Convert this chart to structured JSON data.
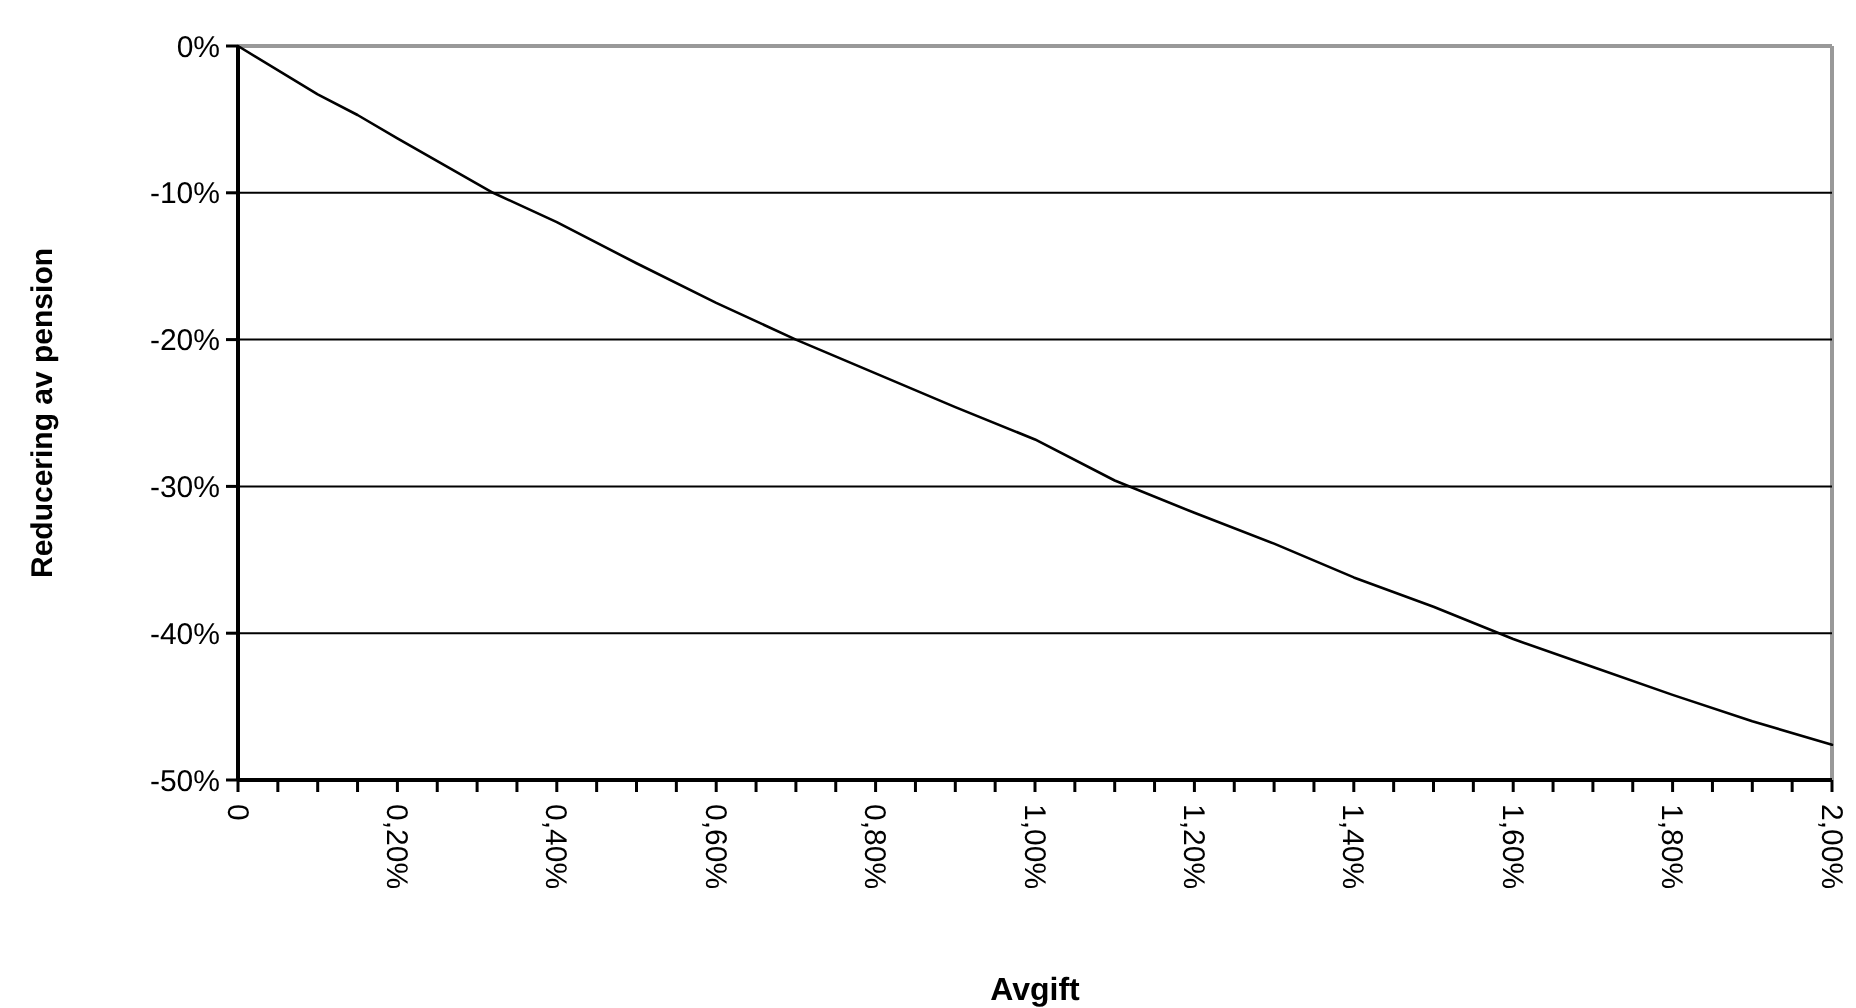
{
  "chart_data": {
    "type": "line",
    "xlabel": "Avgift",
    "ylabel": "Reducering av pension",
    "x": [
      0,
      0.1,
      0.15,
      0.2,
      0.32,
      0.4,
      0.5,
      0.6,
      0.7,
      0.8,
      0.9,
      1.0,
      1.1,
      1.2,
      1.3,
      1.4,
      1.5,
      1.6,
      1.7,
      1.8,
      1.9,
      2.0
    ],
    "series": [
      {
        "color": "#000000",
        "values": [
          0,
          -3.3,
          -4.7,
          -6.3,
          -10,
          -12,
          -14.8,
          -17.5,
          -20,
          -22.3,
          -24.6,
          -26.8,
          -29.6,
          -31.8,
          -33.9,
          -36.2,
          -38.2,
          -40.4,
          -42.3,
          -44.2,
          -46,
          -47.6
        ]
      }
    ],
    "xlim": [
      0,
      2
    ],
    "xticks": [
      {
        "value": 0,
        "label": "0"
      },
      {
        "value": 0.05,
        "label": null
      },
      {
        "value": 0.1,
        "label": null
      },
      {
        "value": 0.15,
        "label": null
      },
      {
        "value": 0.2,
        "label": "0,20%"
      },
      {
        "value": 0.25,
        "label": null
      },
      {
        "value": 0.3,
        "label": null
      },
      {
        "value": 0.35,
        "label": null
      },
      {
        "value": 0.4,
        "label": "0,40%"
      },
      {
        "value": 0.45,
        "label": null
      },
      {
        "value": 0.5,
        "label": null
      },
      {
        "value": 0.55,
        "label": null
      },
      {
        "value": 0.6,
        "label": "0,60%"
      },
      {
        "value": 0.65,
        "label": null
      },
      {
        "value": 0.7,
        "label": null
      },
      {
        "value": 0.75,
        "label": null
      },
      {
        "value": 0.8,
        "label": "0,80%"
      },
      {
        "value": 0.85,
        "label": null
      },
      {
        "value": 0.9,
        "label": null
      },
      {
        "value": 0.95,
        "label": null
      },
      {
        "value": 1.0,
        "label": "1,00%"
      },
      {
        "value": 1.05,
        "label": null
      },
      {
        "value": 1.1,
        "label": null
      },
      {
        "value": 1.15,
        "label": null
      },
      {
        "value": 1.2,
        "label": "1,20%"
      },
      {
        "value": 1.25,
        "label": null
      },
      {
        "value": 1.3,
        "label": null
      },
      {
        "value": 1.35,
        "label": null
      },
      {
        "value": 1.4,
        "label": "1,40%"
      },
      {
        "value": 1.45,
        "label": null
      },
      {
        "value": 1.5,
        "label": null
      },
      {
        "value": 1.55,
        "label": null
      },
      {
        "value": 1.6,
        "label": "1,60%"
      },
      {
        "value": 1.65,
        "label": null
      },
      {
        "value": 1.7,
        "label": null
      },
      {
        "value": 1.75,
        "label": null
      },
      {
        "value": 1.8,
        "label": "1,80%"
      },
      {
        "value": 1.85,
        "label": null
      },
      {
        "value": 1.9,
        "label": null
      },
      {
        "value": 1.95,
        "label": null
      },
      {
        "value": 2.0,
        "label": "2,00%"
      }
    ],
    "ylim": [
      -50,
      0
    ],
    "yticks": [
      {
        "value": -50,
        "label": "-50%"
      },
      {
        "value": -40,
        "label": "-40%"
      },
      {
        "value": -30,
        "label": "-30%"
      },
      {
        "value": -20,
        "label": "-20%"
      },
      {
        "value": -10,
        "label": "-10%"
      },
      {
        "value": 0,
        "label": "0%"
      }
    ],
    "grid": "y",
    "marker": "none",
    "line_style": "solid"
  }
}
